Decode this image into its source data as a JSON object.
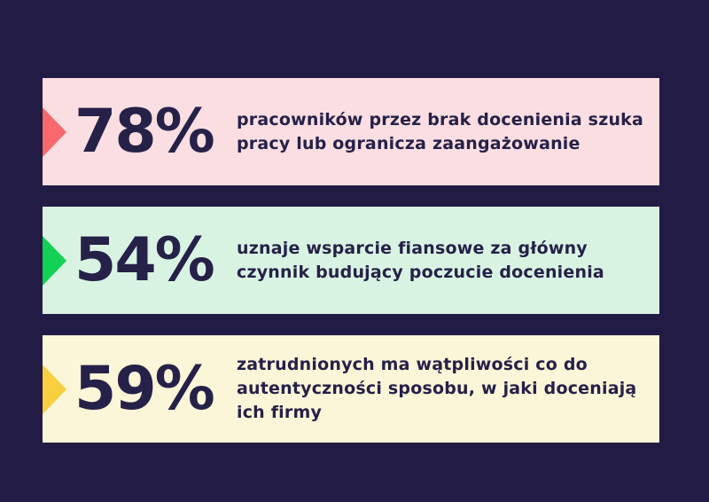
{
  "colors": {
    "background": "#221b44",
    "text_navy": "#262148",
    "bar1_bg": "#fbdee1",
    "bar1_arrow": "#f8696c",
    "bar2_bg": "#d9f3e3",
    "bar2_arrow": "#12d155",
    "bar3_bg": "#fcf6d8",
    "bar3_arrow": "#f7cf3f"
  },
  "bars": [
    {
      "percent": "78%",
      "bg": "#fbdee1",
      "arrow": "#f8696c",
      "lines": [
        "pracowników przez brak docenienia szuka",
        "pracy lub ogranicza zaangażowanie"
      ]
    },
    {
      "percent": "54%",
      "bg": "#d9f3e3",
      "arrow": "#12d155",
      "lines": [
        "uznaje wsparcie fiansowe za główny",
        "czynnik budujący poczucie docenienia"
      ]
    },
    {
      "percent": "59%",
      "bg": "#fcf6d8",
      "arrow": "#f7cf3f",
      "lines": [
        "zatrudnionych ma wątpliwości co do",
        "autentyczności sposobu, w jaki doceniają",
        "ich firmy"
      ]
    }
  ],
  "chart_data": {
    "type": "bar",
    "categories": [
      "pracowników przez brak docenienia szuka pracy lub ogranicza zaangażowanie",
      "uznaje wsparcie fiansowe za główny czynnik budujący poczucie docenienia",
      "zatrudnionych ma wątpliwości co do autentyczności sposobu, w jaki doceniają ich firmy"
    ],
    "values": [
      78,
      54,
      59
    ],
    "unit": "%",
    "title": "",
    "xlabel": "",
    "ylabel": "",
    "legend": "none",
    "orientation": "horizontal-stat-list"
  }
}
